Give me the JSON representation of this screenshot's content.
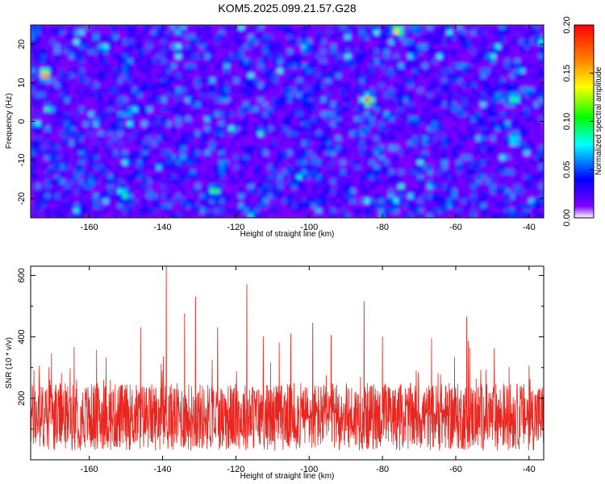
{
  "title": "KOM5.2025.099.21.57.G28",
  "chart_data": [
    {
      "type": "heatmap",
      "xlabel": "Height of straight line (km)",
      "ylabel": "Frequency (Hz)",
      "xlim": [
        -176,
        -36
      ],
      "ylim": [
        -25,
        25
      ],
      "xticks": [
        -160,
        -140,
        -120,
        -100,
        -80,
        -60,
        -40
      ],
      "yticks": [
        -20,
        -10,
        0,
        10,
        20
      ],
      "colorbar": {
        "label": "Normalized spectral amplitude",
        "range": [
          0.0,
          0.2
        ],
        "ticks": [
          "0.00",
          "0.05",
          "0.10",
          "0.15",
          "0.20"
        ],
        "colors": [
          "#ffffff",
          "#8000ff",
          "#0000ff",
          "#00ffff",
          "#00ff00",
          "#ffff00",
          "#ff8000",
          "#ff0000"
        ]
      },
      "notes": "dense speckle of low amplitudes (~0.02-0.08) with scattered peaks",
      "hotspots": [
        {
          "x": -172,
          "y": 12,
          "value": 0.19
        },
        {
          "x": -84,
          "y": 5.5,
          "value": 0.19
        },
        {
          "x": -76,
          "y": 23.5,
          "value": 0.16
        },
        {
          "x": -126,
          "y": -18,
          "value": 0.12
        },
        {
          "x": -44,
          "y": 6,
          "value": 0.11
        },
        {
          "x": -44,
          "y": -5,
          "value": 0.1
        },
        {
          "x": -156,
          "y": 19,
          "value": 0.09
        },
        {
          "x": -150,
          "y": -19,
          "value": 0.1
        },
        {
          "x": -148,
          "y": 3,
          "value": 0.08
        }
      ]
    },
    {
      "type": "line",
      "xlabel": "Height of straight line (km)",
      "ylabel": "SNR (10 * v/v)",
      "xlim": [
        -176,
        -36
      ],
      "ylim": [
        0,
        630
      ],
      "xticks": [
        -160,
        -140,
        -120,
        -100,
        -80,
        -60,
        -40
      ],
      "yticks": [
        200,
        400,
        600
      ],
      "color": "#e8261f",
      "baseline": 140,
      "noise_amplitude": 110,
      "peaks": [
        {
          "x": -139,
          "y": 630
        },
        {
          "x": -117,
          "y": 570
        },
        {
          "x": -131,
          "y": 530
        },
        {
          "x": -85,
          "y": 515
        },
        {
          "x": -57,
          "y": 465
        },
        {
          "x": -146,
          "y": 430
        },
        {
          "x": -105,
          "y": 410
        },
        {
          "x": -99,
          "y": 445
        },
        {
          "x": -134,
          "y": 475
        },
        {
          "x": -125,
          "y": 430
        },
        {
          "x": -80,
          "y": 400
        },
        {
          "x": -94,
          "y": 405
        },
        {
          "x": -171,
          "y": 300
        },
        {
          "x": -40,
          "y": 305
        }
      ]
    }
  ]
}
